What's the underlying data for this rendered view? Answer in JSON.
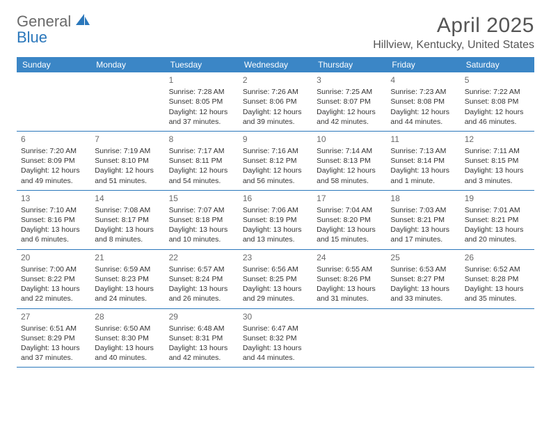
{
  "branding": {
    "logo_text_1": "General",
    "logo_text_2": "Blue",
    "logo_color_1": "#6a6a6a",
    "logo_color_2": "#2a77bb"
  },
  "header": {
    "month_title": "April 2025",
    "location": "Hillview, Kentucky, United States"
  },
  "styling": {
    "header_bg": "#3b86c6",
    "header_text_color": "#ffffff",
    "divider_color": "#2a77bb",
    "body_text_color": "#333333",
    "day_num_color": "#6a6a6a",
    "title_color": "#555555",
    "body_font_size": 10.5,
    "day_num_font_size": 12,
    "weekday_font_size": 12,
    "title_font_size": 30,
    "location_font_size": 16
  },
  "weekdays": [
    "Sunday",
    "Monday",
    "Tuesday",
    "Wednesday",
    "Thursday",
    "Friday",
    "Saturday"
  ],
  "weeks": [
    [
      null,
      null,
      {
        "day": "1",
        "sunrise": "Sunrise: 7:28 AM",
        "sunset": "Sunset: 8:05 PM",
        "daylight1": "Daylight: 12 hours",
        "daylight2": "and 37 minutes."
      },
      {
        "day": "2",
        "sunrise": "Sunrise: 7:26 AM",
        "sunset": "Sunset: 8:06 PM",
        "daylight1": "Daylight: 12 hours",
        "daylight2": "and 39 minutes."
      },
      {
        "day": "3",
        "sunrise": "Sunrise: 7:25 AM",
        "sunset": "Sunset: 8:07 PM",
        "daylight1": "Daylight: 12 hours",
        "daylight2": "and 42 minutes."
      },
      {
        "day": "4",
        "sunrise": "Sunrise: 7:23 AM",
        "sunset": "Sunset: 8:08 PM",
        "daylight1": "Daylight: 12 hours",
        "daylight2": "and 44 minutes."
      },
      {
        "day": "5",
        "sunrise": "Sunrise: 7:22 AM",
        "sunset": "Sunset: 8:08 PM",
        "daylight1": "Daylight: 12 hours",
        "daylight2": "and 46 minutes."
      }
    ],
    [
      {
        "day": "6",
        "sunrise": "Sunrise: 7:20 AM",
        "sunset": "Sunset: 8:09 PM",
        "daylight1": "Daylight: 12 hours",
        "daylight2": "and 49 minutes."
      },
      {
        "day": "7",
        "sunrise": "Sunrise: 7:19 AM",
        "sunset": "Sunset: 8:10 PM",
        "daylight1": "Daylight: 12 hours",
        "daylight2": "and 51 minutes."
      },
      {
        "day": "8",
        "sunrise": "Sunrise: 7:17 AM",
        "sunset": "Sunset: 8:11 PM",
        "daylight1": "Daylight: 12 hours",
        "daylight2": "and 54 minutes."
      },
      {
        "day": "9",
        "sunrise": "Sunrise: 7:16 AM",
        "sunset": "Sunset: 8:12 PM",
        "daylight1": "Daylight: 12 hours",
        "daylight2": "and 56 minutes."
      },
      {
        "day": "10",
        "sunrise": "Sunrise: 7:14 AM",
        "sunset": "Sunset: 8:13 PM",
        "daylight1": "Daylight: 12 hours",
        "daylight2": "and 58 minutes."
      },
      {
        "day": "11",
        "sunrise": "Sunrise: 7:13 AM",
        "sunset": "Sunset: 8:14 PM",
        "daylight1": "Daylight: 13 hours",
        "daylight2": "and 1 minute."
      },
      {
        "day": "12",
        "sunrise": "Sunrise: 7:11 AM",
        "sunset": "Sunset: 8:15 PM",
        "daylight1": "Daylight: 13 hours",
        "daylight2": "and 3 minutes."
      }
    ],
    [
      {
        "day": "13",
        "sunrise": "Sunrise: 7:10 AM",
        "sunset": "Sunset: 8:16 PM",
        "daylight1": "Daylight: 13 hours",
        "daylight2": "and 6 minutes."
      },
      {
        "day": "14",
        "sunrise": "Sunrise: 7:08 AM",
        "sunset": "Sunset: 8:17 PM",
        "daylight1": "Daylight: 13 hours",
        "daylight2": "and 8 minutes."
      },
      {
        "day": "15",
        "sunrise": "Sunrise: 7:07 AM",
        "sunset": "Sunset: 8:18 PM",
        "daylight1": "Daylight: 13 hours",
        "daylight2": "and 10 minutes."
      },
      {
        "day": "16",
        "sunrise": "Sunrise: 7:06 AM",
        "sunset": "Sunset: 8:19 PM",
        "daylight1": "Daylight: 13 hours",
        "daylight2": "and 13 minutes."
      },
      {
        "day": "17",
        "sunrise": "Sunrise: 7:04 AM",
        "sunset": "Sunset: 8:20 PM",
        "daylight1": "Daylight: 13 hours",
        "daylight2": "and 15 minutes."
      },
      {
        "day": "18",
        "sunrise": "Sunrise: 7:03 AM",
        "sunset": "Sunset: 8:21 PM",
        "daylight1": "Daylight: 13 hours",
        "daylight2": "and 17 minutes."
      },
      {
        "day": "19",
        "sunrise": "Sunrise: 7:01 AM",
        "sunset": "Sunset: 8:21 PM",
        "daylight1": "Daylight: 13 hours",
        "daylight2": "and 20 minutes."
      }
    ],
    [
      {
        "day": "20",
        "sunrise": "Sunrise: 7:00 AM",
        "sunset": "Sunset: 8:22 PM",
        "daylight1": "Daylight: 13 hours",
        "daylight2": "and 22 minutes."
      },
      {
        "day": "21",
        "sunrise": "Sunrise: 6:59 AM",
        "sunset": "Sunset: 8:23 PM",
        "daylight1": "Daylight: 13 hours",
        "daylight2": "and 24 minutes."
      },
      {
        "day": "22",
        "sunrise": "Sunrise: 6:57 AM",
        "sunset": "Sunset: 8:24 PM",
        "daylight1": "Daylight: 13 hours",
        "daylight2": "and 26 minutes."
      },
      {
        "day": "23",
        "sunrise": "Sunrise: 6:56 AM",
        "sunset": "Sunset: 8:25 PM",
        "daylight1": "Daylight: 13 hours",
        "daylight2": "and 29 minutes."
      },
      {
        "day": "24",
        "sunrise": "Sunrise: 6:55 AM",
        "sunset": "Sunset: 8:26 PM",
        "daylight1": "Daylight: 13 hours",
        "daylight2": "and 31 minutes."
      },
      {
        "day": "25",
        "sunrise": "Sunrise: 6:53 AM",
        "sunset": "Sunset: 8:27 PM",
        "daylight1": "Daylight: 13 hours",
        "daylight2": "and 33 minutes."
      },
      {
        "day": "26",
        "sunrise": "Sunrise: 6:52 AM",
        "sunset": "Sunset: 8:28 PM",
        "daylight1": "Daylight: 13 hours",
        "daylight2": "and 35 minutes."
      }
    ],
    [
      {
        "day": "27",
        "sunrise": "Sunrise: 6:51 AM",
        "sunset": "Sunset: 8:29 PM",
        "daylight1": "Daylight: 13 hours",
        "daylight2": "and 37 minutes."
      },
      {
        "day": "28",
        "sunrise": "Sunrise: 6:50 AM",
        "sunset": "Sunset: 8:30 PM",
        "daylight1": "Daylight: 13 hours",
        "daylight2": "and 40 minutes."
      },
      {
        "day": "29",
        "sunrise": "Sunrise: 6:48 AM",
        "sunset": "Sunset: 8:31 PM",
        "daylight1": "Daylight: 13 hours",
        "daylight2": "and 42 minutes."
      },
      {
        "day": "30",
        "sunrise": "Sunrise: 6:47 AM",
        "sunset": "Sunset: 8:32 PM",
        "daylight1": "Daylight: 13 hours",
        "daylight2": "and 44 minutes."
      },
      null,
      null,
      null
    ]
  ]
}
